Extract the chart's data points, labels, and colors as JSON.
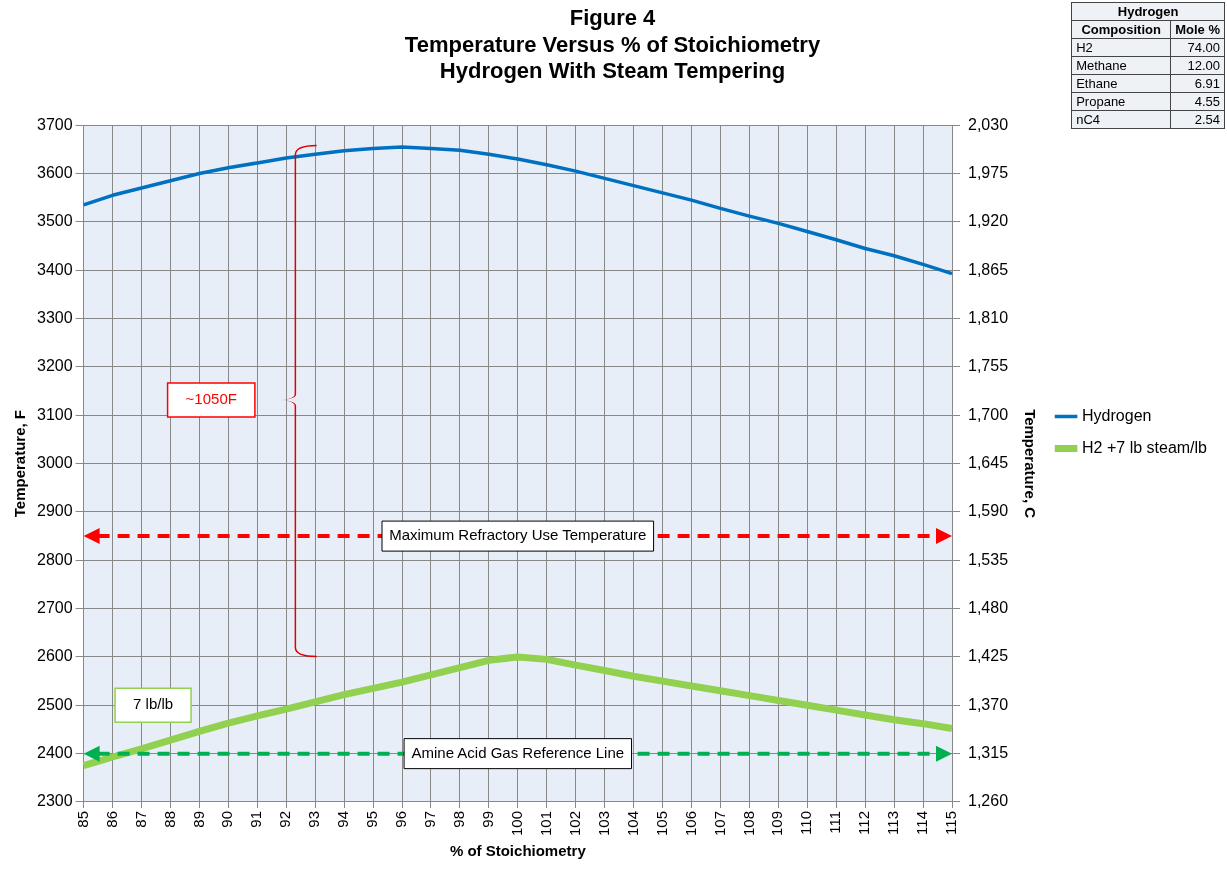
{
  "chart_data": [
    {
      "type": "line",
      "title": "Figure 4\nTemperature Versus % of Stoichiometry\nHydrogen With Steam Tempering",
      "xlabel": "% of Stoichiometry",
      "ylabel": "Temperature, F",
      "y2label": "Temperature, C",
      "categories": [
        "85",
        "86",
        "87",
        "88",
        "89",
        "90",
        "91",
        "92",
        "93",
        "94",
        "95",
        "96",
        "97",
        "98",
        "99",
        "100",
        "101",
        "102",
        "103",
        "104",
        "105",
        "106",
        "107",
        "108",
        "109",
        "110",
        "111",
        "112",
        "113",
        "114",
        "115"
      ],
      "series": [
        {
          "name": "Hydrogen",
          "color": "#0070c0",
          "values": [
            3535,
            3555,
            3570,
            3585,
            3600,
            3612,
            3622,
            3632,
            3640,
            3647,
            3652,
            3655,
            3652,
            3648,
            3640,
            3630,
            3618,
            3605,
            3590,
            3575,
            3560,
            3545,
            3528,
            3512,
            3497,
            3480,
            3463,
            3445,
            3430,
            3412,
            3393
          ]
        },
        {
          "name": "H2 +7 lb steam/lb",
          "color": "#92d050",
          "values": [
            2375,
            2393,
            2410,
            2428,
            2446,
            2463,
            2478,
            2492,
            2507,
            2522,
            2535,
            2548,
            2563,
            2578,
            2593,
            2600,
            2595,
            2583,
            2572,
            2560,
            2550,
            2540,
            2530,
            2520,
            2510,
            2500,
            2490,
            2480,
            2470,
            2462,
            2452
          ]
        }
      ],
      "ylim": [
        2300,
        3700
      ],
      "yticks": [
        2300,
        2400,
        2500,
        2600,
        2700,
        2800,
        2900,
        3000,
        3100,
        3200,
        3300,
        3400,
        3500,
        3600,
        3700
      ],
      "y2lim": [
        1260,
        2030
      ],
      "y2ticks": [
        {
          "value": 1260,
          "label": "1,260"
        },
        {
          "value": 1315,
          "label": "1,315"
        },
        {
          "value": 1370,
          "label": "1,370"
        },
        {
          "value": 1425,
          "label": "1,425"
        },
        {
          "value": 1480,
          "label": "1,480"
        },
        {
          "value": 1535,
          "label": "1,535"
        },
        {
          "value": 1590,
          "label": "1,590"
        },
        {
          "value": 1645,
          "label": "1,645"
        },
        {
          "value": 1700,
          "label": "1,700"
        },
        {
          "value": 1755,
          "label": "1,755"
        },
        {
          "value": 1810,
          "label": "1,810"
        },
        {
          "value": 1865,
          "label": "1,865"
        },
        {
          "value": 1920,
          "label": "1,920"
        },
        {
          "value": 1975,
          "label": "1,975"
        },
        {
          "value": 2030,
          "label": "2,030"
        }
      ],
      "ref_lines": [
        {
          "axis": "y",
          "value": 2850,
          "label": "Maximum Refractory Use Temperature",
          "color": "#ff0000",
          "line_style": "dashed"
        },
        {
          "axis": "y",
          "value": 2400,
          "label": "Amine Acid Gas Reference Line",
          "color": "#00b050",
          "line_style": "dashed"
        }
      ],
      "annotations": [
        "~1050F",
        "7 lb/lb"
      ],
      "grid": true,
      "legend": "right",
      "marker": "none",
      "line_style": "solid"
    },
    {
      "type": "other",
      "title": "Hydrogen",
      "annotations": [
        "Composition",
        "Mole %",
        "H2",
        "74.00",
        "Methane",
        "12.00",
        "Ethane",
        "6.91",
        "Propane",
        "4.55",
        "nC4",
        "2.54"
      ]
    }
  ]
}
